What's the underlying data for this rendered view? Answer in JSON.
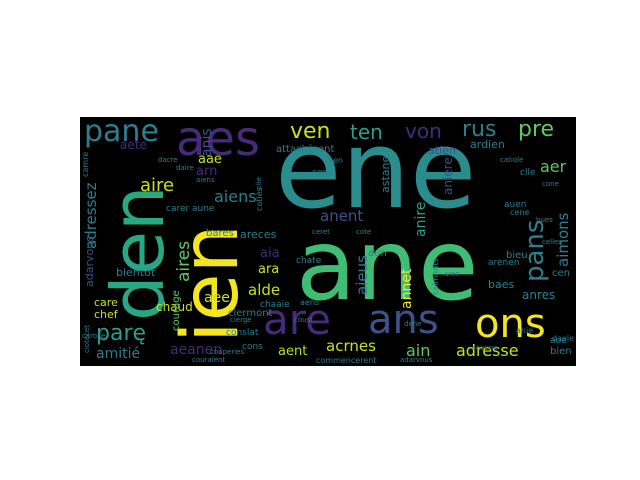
{
  "wordcloud": {
    "background": "#000000",
    "words": [
      {
        "text": "ene",
        "color": "#2a8c8c"
      },
      {
        "text": "ane",
        "color": "#3fbd74"
      },
      {
        "text": "den",
        "color": "#27a882"
      },
      {
        "text": "ien",
        "color": "#f3e51f"
      },
      {
        "text": "aes",
        "color": "#472a7a"
      },
      {
        "text": "ans",
        "color": "#3b528b"
      },
      {
        "text": "ons",
        "color": "#f3e51f"
      },
      {
        "text": "are",
        "color": "#472a7a"
      },
      {
        "text": "pane",
        "color": "#2c7f8e"
      },
      {
        "text": "ven",
        "color": "#c8e020"
      },
      {
        "text": "ten",
        "color": "#2c9e8a"
      },
      {
        "text": "von",
        "color": "#472a7a"
      },
      {
        "text": "rus",
        "color": "#2c7f8e"
      },
      {
        "text": "pre",
        "color": "#5ec962"
      },
      {
        "text": "pans",
        "color": "#2c7f8e"
      },
      {
        "text": "parę",
        "color": "#2c9e8a"
      },
      {
        "text": "aire",
        "color": "#c8e020"
      },
      {
        "text": "aires",
        "color": "#5ec962"
      },
      {
        "text": "aiens",
        "color": "#2c7f8e"
      },
      {
        "text": "anent",
        "color": "#3b528b"
      },
      {
        "text": "aieus",
        "color": "#2c7f8e"
      },
      {
        "text": "aimons",
        "color": "#2c7f8e"
      },
      {
        "text": "adressez",
        "color": "#2c7f8e"
      },
      {
        "text": "adresse",
        "color": "#c8e020"
      },
      {
        "text": "acrnes",
        "color": "#c8e020"
      },
      {
        "text": "aeanen",
        "color": "#472a7a"
      },
      {
        "text": "amitié",
        "color": "#2c7f8e"
      },
      {
        "text": "aent",
        "color": "#b5de2b"
      },
      {
        "text": "ain",
        "color": "#5ec962"
      },
      {
        "text": "aer",
        "color": "#5ec962"
      },
      {
        "text": "anire",
        "color": "#2c9e8a"
      },
      {
        "text": "anis",
        "color": "#3b528b"
      },
      {
        "text": "annet",
        "color": "#f3e51f"
      },
      {
        "text": "alde",
        "color": "#c8e020"
      },
      {
        "text": "ara",
        "color": "#c8e020"
      },
      {
        "text": "aia",
        "color": "#472a7a"
      },
      {
        "text": "aae",
        "color": "#c8e020"
      },
      {
        "text": "aee",
        "color": "#c8e020"
      },
      {
        "text": "arn",
        "color": "#472a7a"
      },
      {
        "text": "anres",
        "color": "#2c7f8e"
      },
      {
        "text": "aete",
        "color": "#472a7a"
      },
      {
        "text": "adarvous",
        "color": "#3b528b"
      },
      {
        "text": "aniere",
        "color": "#3b528b"
      },
      {
        "text": "astane",
        "color": "#2c7f8e"
      },
      {
        "text": "ardien",
        "color": "#2c7f8e"
      },
      {
        "text": "atien",
        "color": "#3b528b"
      },
      {
        "text": "attachèrent",
        "color": "#2c7f8e"
      },
      {
        "text": "areces",
        "color": "#2c7f8e"
      },
      {
        "text": "aun",
        "color": "#2c7f8e"
      },
      {
        "text": "baes",
        "color": "#2c7f8e"
      },
      {
        "text": "bieu",
        "color": "#2c7f8e"
      },
      {
        "text": "bien",
        "color": "#2c7f8e"
      },
      {
        "text": "bares",
        "color": "#2c7f8e"
      },
      {
        "text": "bientôt",
        "color": "#2c7f8e"
      },
      {
        "text": "chaud",
        "color": "#c8e020"
      },
      {
        "text": "chef",
        "color": "#c8e020"
      },
      {
        "text": "care",
        "color": "#c8e020"
      },
      {
        "text": "courage",
        "color": "#5ec962"
      },
      {
        "text": "cone",
        "color": "#2c7f8e"
      },
      {
        "text": "clle",
        "color": "#2c7f8e"
      },
      {
        "text": "cen",
        "color": "#2c7f8e"
      },
      {
        "text": "clermont",
        "color": "#2c7f8e"
      },
      {
        "text": "conslat",
        "color": "#2c7f8e"
      },
      {
        "text": "commencerent",
        "color": "#2c7f8e"
      },
      {
        "text": "chaaie",
        "color": "#2c7f8e"
      },
      {
        "text": "chate",
        "color": "#2c7f8e"
      },
      {
        "text": "carer",
        "color": "#2c7f8e"
      },
      {
        "text": "aune",
        "color": "#2c7f8e"
      },
      {
        "text": "arenen",
        "color": "#2c7f8e"
      },
      {
        "text": "auen",
        "color": "#2c7f8e"
      },
      {
        "text": "cene",
        "color": "#2c7f8e"
      },
      {
        "text": "daele",
        "color": "#2c7f8e"
      },
      {
        "text": "anie",
        "color": "#2c7f8e"
      },
      {
        "text": "cons",
        "color": "#2c7f8e"
      },
      {
        "text": "aue",
        "color": "#2c7f8e"
      },
      {
        "text": "cotiės",
        "color": "#2c7f8e"
      },
      {
        "text": "ciotecet",
        "color": "#2c7f8e"
      },
      {
        "text": "calmants",
        "color": "#2c7f8e"
      },
      {
        "text": "aens",
        "color": "#2c7f8e"
      },
      {
        "text": "couraient",
        "color": "#2c7f8e"
      },
      {
        "text": "couperies",
        "color": "#2c7f8e"
      },
      {
        "text": "dacre",
        "color": "#2c7f8e"
      },
      {
        "text": "clie",
        "color": "#2c7f8e"
      },
      {
        "text": "aen",
        "color": "#2c7f8e"
      },
      {
        "text": "catiole",
        "color": "#2c7f8e"
      },
      {
        "text": "camre",
        "color": "#2c7f8e"
      },
      {
        "text": "bues",
        "color": "#2c7f8e"
      },
      {
        "text": "cierge",
        "color": "#2c7f8e"
      },
      {
        "text": "daire",
        "color": "#2c7f8e"
      },
      {
        "text": "aren",
        "color": "#2c7f8e"
      },
      {
        "text": "aiens",
        "color": "#2c7f8e"
      },
      {
        "text": "dene",
        "color": "#2c7f8e"
      },
      {
        "text": "coust",
        "color": "#2c7f8e"
      },
      {
        "text": "carolle",
        "color": "#2c7f8e"
      },
      {
        "text": "ceret",
        "color": "#2c7f8e"
      },
      {
        "text": "cote",
        "color": "#2c7f8e"
      },
      {
        "text": "cone",
        "color": "#2c7f8e"
      },
      {
        "text": "ceuene",
        "color": "#2c7f8e"
      },
      {
        "text": "celles",
        "color": "#2c7f8e"
      },
      {
        "text": "adarvous",
        "color": "#2c7f8e"
      }
    ]
  }
}
